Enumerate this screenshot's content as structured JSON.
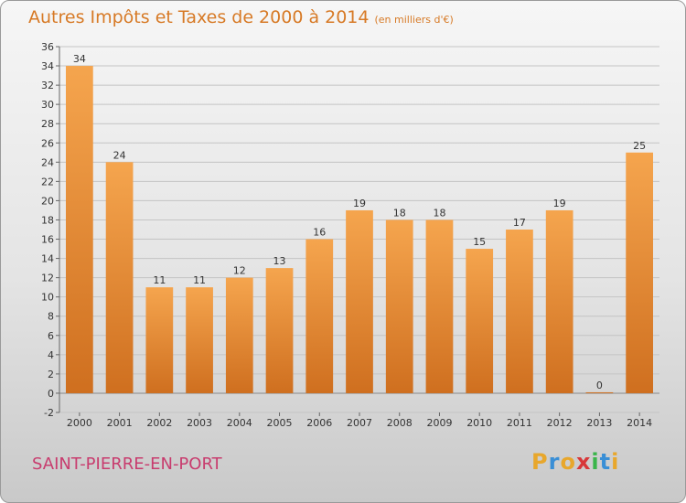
{
  "chart_data": {
    "type": "bar",
    "title": "Autres Impôts et Taxes de 2000 à 2014",
    "subtitle": "(en milliers d'€)",
    "categories": [
      "2000",
      "2001",
      "2002",
      "2003",
      "2004",
      "2005",
      "2006",
      "2007",
      "2008",
      "2009",
      "2010",
      "2011",
      "2012",
      "2013",
      "2014"
    ],
    "values": [
      34,
      24,
      11,
      11,
      12,
      13,
      16,
      19,
      18,
      18,
      15,
      17,
      19,
      0,
      25
    ],
    "ylim": [
      -2,
      36
    ],
    "yticks": [
      -2,
      0,
      2,
      4,
      6,
      8,
      10,
      12,
      14,
      16,
      18,
      20,
      22,
      24,
      26,
      28,
      30,
      32,
      34,
      36
    ],
    "grid": true,
    "bar_color_top": "#f5a54e",
    "bar_color_bottom": "#cf6f1f"
  },
  "place_name": "SAINT-PIERRE-EN-PORT",
  "logo": {
    "letters": [
      "P",
      "r",
      "o",
      "x",
      "i",
      "t",
      "i"
    ],
    "colors": [
      "#e8a72c",
      "#3a8fd6",
      "#e8a72c",
      "#d8383a",
      "#3ab54a",
      "#3a8fd6",
      "#e8a72c"
    ]
  }
}
